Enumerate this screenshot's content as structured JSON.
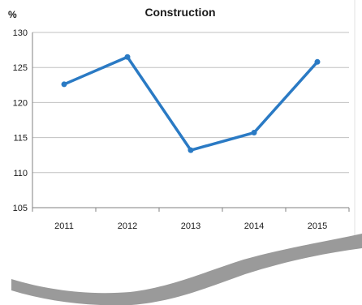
{
  "chart_data": {
    "type": "line",
    "title": "Construction",
    "ylabel": "%",
    "xlabel": "",
    "categories": [
      "2011",
      "2012",
      "2013",
      "2014",
      "2015"
    ],
    "series": [
      {
        "values": [
          122.6,
          126.5,
          113.2,
          115.7,
          125.8
        ]
      }
    ],
    "ylim": [
      105,
      130
    ],
    "yticks": [
      "105",
      "110",
      "115",
      "120",
      "125",
      "130"
    ],
    "grid": true,
    "legend": "none",
    "colors": {
      "series": "#2a7ac4",
      "grid": "#c0c0c0",
      "axis": "#808080",
      "fold": "#9a9a9a"
    }
  }
}
